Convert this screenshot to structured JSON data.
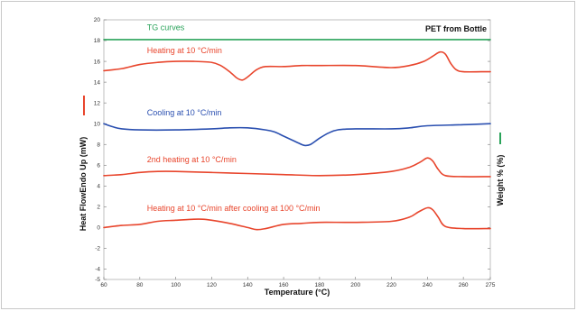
{
  "chart_data": {
    "type": "line",
    "title": "PET from Bottle",
    "xlabel": "Temperature (°C)",
    "ylabel": "Heat FlowEndo Up (mW)",
    "y2label": "Weight % (%)",
    "xlim": [
      60,
      275
    ],
    "ylim": [
      -5,
      20
    ],
    "x_ticks": [
      60,
      80,
      100,
      120,
      140,
      160,
      180,
      200,
      220,
      240,
      260,
      275
    ],
    "y_ticks": [
      -5,
      -4,
      -2,
      0,
      2,
      4,
      6,
      8,
      10,
      12,
      14,
      16,
      18,
      20
    ],
    "grid": false,
    "colors": {
      "red": "#e8452c",
      "blue": "#2a4fb0",
      "green": "#2aa35a"
    },
    "series": [
      {
        "name": "TG curves",
        "color": "#2aa35a",
        "x": [
          60,
          275
        ],
        "y": [
          18.1,
          18.1
        ]
      },
      {
        "name": "Heating at 10 °C/min",
        "color": "#e8452c",
        "x": [
          60,
          70,
          80,
          90,
          100,
          110,
          120,
          125,
          130,
          134,
          137,
          140,
          145,
          150,
          160,
          170,
          180,
          200,
          220,
          230,
          238,
          243,
          247,
          250,
          253,
          256,
          260,
          270,
          275
        ],
        "y": [
          15.1,
          15.3,
          15.7,
          15.9,
          16.0,
          16.0,
          15.9,
          15.6,
          15.0,
          14.4,
          14.2,
          14.5,
          15.2,
          15.5,
          15.5,
          15.6,
          15.6,
          15.6,
          15.4,
          15.6,
          16.0,
          16.5,
          16.9,
          16.7,
          15.8,
          15.2,
          15.0,
          15.0,
          15.0
        ]
      },
      {
        "name": "Cooling at 10 °C/min",
        "color": "#2a4fb0",
        "x": [
          60,
          65,
          70,
          80,
          100,
          120,
          130,
          140,
          150,
          155,
          160,
          165,
          170,
          172,
          175,
          180,
          185,
          190,
          200,
          220,
          230,
          240,
          260,
          275
        ],
        "y": [
          10.0,
          9.7,
          9.5,
          9.4,
          9.4,
          9.5,
          9.6,
          9.6,
          9.4,
          9.2,
          8.8,
          8.4,
          8.0,
          7.9,
          8.0,
          8.6,
          9.1,
          9.4,
          9.5,
          9.5,
          9.6,
          9.8,
          9.9,
          10.0
        ]
      },
      {
        "name": "2nd heating at 10 °C/min",
        "color": "#e8452c",
        "x": [
          60,
          70,
          80,
          90,
          100,
          120,
          140,
          160,
          180,
          200,
          220,
          230,
          236,
          240,
          243,
          246,
          250,
          260,
          275
        ],
        "y": [
          5.0,
          5.1,
          5.3,
          5.4,
          5.4,
          5.3,
          5.2,
          5.1,
          5.0,
          5.1,
          5.4,
          5.8,
          6.3,
          6.7,
          6.4,
          5.6,
          5.0,
          4.9,
          4.9
        ]
      },
      {
        "name": "Heating at 10 °C/min after cooling at 100 °C/min",
        "color": "#e8452c",
        "x": [
          60,
          70,
          80,
          90,
          100,
          110,
          115,
          120,
          130,
          140,
          145,
          150,
          160,
          170,
          180,
          200,
          220,
          230,
          235,
          240,
          243,
          246,
          250,
          260,
          275
        ],
        "y": [
          0.0,
          0.2,
          0.3,
          0.6,
          0.7,
          0.8,
          0.8,
          0.7,
          0.4,
          0.0,
          -0.2,
          -0.1,
          0.3,
          0.4,
          0.5,
          0.5,
          0.6,
          1.0,
          1.5,
          1.9,
          1.7,
          1.0,
          0.1,
          -0.1,
          -0.1
        ]
      }
    ],
    "annotations": [
      {
        "text": "TG curves",
        "x": 84,
        "y": 19.0,
        "color": "#2aa35a"
      },
      {
        "text": "Heating at 10 °C/min",
        "x": 84,
        "y": 16.8,
        "color": "#e8452c"
      },
      {
        "text": "Cooling at 10 °C/min",
        "x": 84,
        "y": 10.8,
        "color": "#2a4fb0"
      },
      {
        "text": "2nd heating at 10 °C/min",
        "x": 84,
        "y": 6.3,
        "color": "#e8452c"
      },
      {
        "text": "Heating at 10 °C/min after cooling at 100 °C/min",
        "x": 84,
        "y": 1.6,
        "color": "#e8452c"
      }
    ]
  }
}
